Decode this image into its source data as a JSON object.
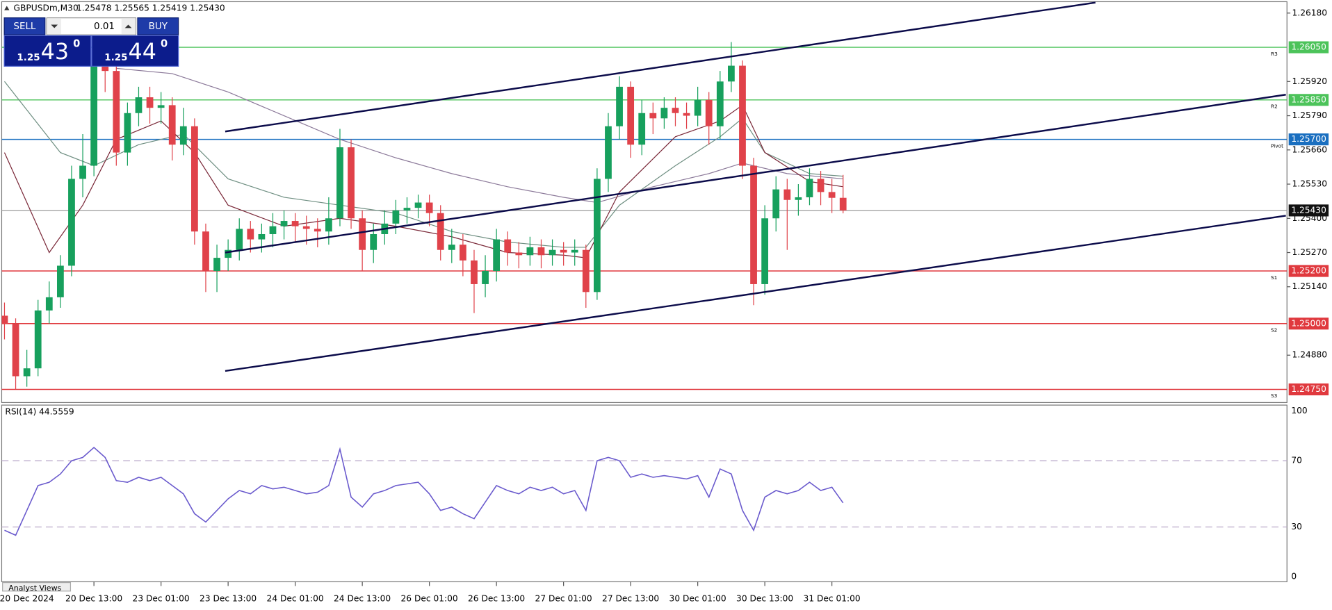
{
  "chart_data": [
    {
      "type": "candlestick",
      "title": "GBPUSDm,M30",
      "ohlc_text": "1.25478 1.25565 1.25419 1.25430",
      "categories": [
        null,
        null,
        "20 Dec 2024",
        null,
        null,
        null,
        null,
        null,
        "20 Dec 13:00",
        null,
        null,
        null,
        null,
        null,
        "23 Dec 01:00",
        null,
        null,
        null,
        null,
        null,
        "23 Dec 13:00",
        null,
        null,
        null,
        null,
        null,
        "24 Dec 01:00",
        null,
        null,
        null,
        null,
        null,
        "24 Dec 13:00",
        null,
        null,
        null,
        null,
        null,
        "26 Dec 01:00",
        null,
        null,
        null,
        null,
        null,
        "26 Dec 13:00",
        null,
        null,
        null,
        null,
        null,
        "27 Dec 01:00",
        null,
        null,
        null,
        null,
        null,
        "27 Dec 13:00",
        null,
        null,
        null,
        null,
        null,
        "30 Dec 01:00",
        null,
        null,
        null,
        null,
        null,
        "30 Dec 13:00",
        null,
        null,
        null,
        null,
        null,
        "31 Dec 01:00",
        null
      ],
      "open": [
        1.2503,
        1.25,
        1.248,
        1.2483,
        1.2505,
        1.251,
        1.2522,
        1.2555,
        1.256,
        1.2598,
        1.2596,
        1.2565,
        1.258,
        1.2586,
        1.2582,
        1.2583,
        1.2568,
        1.2575,
        1.2535,
        1.252,
        1.2525,
        1.2528,
        1.2536,
        1.2532,
        1.2534,
        1.2537,
        1.2539,
        1.2537,
        1.2536,
        1.2535,
        1.254,
        1.2567,
        1.254,
        1.2528,
        1.2534,
        1.2538,
        1.2543,
        1.2544,
        1.2546,
        1.2542,
        1.2528,
        1.253,
        1.2524,
        1.2515,
        1.252,
        1.2532,
        1.2527,
        1.2526,
        1.2529,
        1.2526,
        1.2528,
        1.2527,
        1.2528,
        1.2512,
        1.2555,
        1.2575,
        1.259,
        1.2568,
        1.258,
        1.2578,
        1.2582,
        1.258,
        1.2579,
        1.2585,
        1.2575,
        1.2592,
        1.2598,
        1.256,
        1.2515,
        1.254,
        1.2551,
        1.2547,
        1.2548,
        1.2555,
        1.255,
        1.25478
      ],
      "high": [
        1.2508,
        1.2502,
        1.249,
        1.2509,
        1.2516,
        1.2526,
        1.256,
        1.2572,
        1.2602,
        1.2604,
        1.2598,
        1.2584,
        1.259,
        1.259,
        1.2588,
        1.2586,
        1.2582,
        1.2578,
        1.2538,
        1.253,
        1.2532,
        1.254,
        1.2539,
        1.2538,
        1.2542,
        1.2543,
        1.2542,
        1.2541,
        1.254,
        1.2548,
        1.2574,
        1.257,
        1.2543,
        1.2538,
        1.2543,
        1.2547,
        1.2548,
        1.2549,
        1.2549,
        1.2545,
        1.2536,
        1.2534,
        1.2528,
        1.2526,
        1.2536,
        1.2535,
        1.2531,
        1.2533,
        1.2532,
        1.2532,
        1.2531,
        1.2532,
        1.253,
        1.2559,
        1.258,
        1.2594,
        1.2592,
        1.2585,
        1.2584,
        1.2586,
        1.2586,
        1.2584,
        1.259,
        1.2588,
        1.2596,
        1.2607,
        1.26,
        1.2563,
        1.2545,
        1.2556,
        1.2555,
        1.2553,
        1.2559,
        1.2558,
        1.2555,
        1.25565
      ],
      "low": [
        1.2494,
        1.2475,
        1.2476,
        1.248,
        1.25,
        1.2506,
        1.2518,
        1.2548,
        1.2556,
        1.2588,
        1.256,
        1.256,
        1.2575,
        1.2576,
        1.2576,
        1.2562,
        1.2564,
        1.253,
        1.2512,
        1.2512,
        1.252,
        1.2524,
        1.2527,
        1.2527,
        1.2529,
        1.2532,
        1.2531,
        1.253,
        1.2529,
        1.253,
        1.2537,
        1.2536,
        1.252,
        1.2523,
        1.253,
        1.2534,
        1.2538,
        1.254,
        1.2537,
        1.2524,
        1.2523,
        1.2518,
        1.2504,
        1.251,
        1.2516,
        1.2522,
        1.2521,
        1.2522,
        1.2521,
        1.2522,
        1.2522,
        1.2522,
        1.2506,
        1.2509,
        1.255,
        1.257,
        1.2563,
        1.2564,
        1.2572,
        1.2574,
        1.2575,
        1.2574,
        1.2575,
        1.2568,
        1.257,
        1.2588,
        1.2555,
        1.2507,
        1.2511,
        1.2535,
        1.2528,
        1.2541,
        1.2545,
        1.2545,
        1.2542,
        1.25419
      ],
      "close": [
        1.25,
        1.248,
        1.2483,
        1.2505,
        1.251,
        1.2522,
        1.2555,
        1.256,
        1.2598,
        1.2596,
        1.2565,
        1.258,
        1.2586,
        1.2582,
        1.2583,
        1.2568,
        1.2575,
        1.2535,
        1.252,
        1.2525,
        1.2528,
        1.2536,
        1.2532,
        1.2534,
        1.2537,
        1.2539,
        1.2537,
        1.2536,
        1.2535,
        1.254,
        1.2567,
        1.254,
        1.2528,
        1.2534,
        1.2538,
        1.2543,
        1.2544,
        1.2546,
        1.2542,
        1.2528,
        1.253,
        1.2524,
        1.2515,
        1.252,
        1.2532,
        1.2527,
        1.2526,
        1.2529,
        1.2526,
        1.2528,
        1.2527,
        1.2528,
        1.2512,
        1.2555,
        1.2575,
        1.259,
        1.2568,
        1.258,
        1.2578,
        1.2582,
        1.258,
        1.2579,
        1.2585,
        1.2575,
        1.2592,
        1.2598,
        1.256,
        1.2515,
        1.254,
        1.2551,
        1.2547,
        1.2548,
        1.2555,
        1.255,
        1.25478,
        1.2543
      ],
      "up_color": "#17a05d",
      "down_color": "#e0424a",
      "xlim": [
        -0.25,
        114.7
      ],
      "ylim": [
        1.247,
        1.2622
      ],
      "grid": false,
      "yticks": [
        {
          "value": 1.2618,
          "label": "1.26180"
        },
        {
          "value": 1.2592,
          "label": "1.25920"
        },
        {
          "value": 1.2579,
          "label": "1.25790"
        },
        {
          "value": 1.2566,
          "label": "1.25660"
        },
        {
          "value": 1.2553,
          "label": "1.25530"
        },
        {
          "value": 1.254,
          "label": "1.25400"
        },
        {
          "value": 1.2527,
          "label": "1.25270"
        },
        {
          "value": 1.2514,
          "label": "1.25140"
        },
        {
          "value": 1.2488,
          "label": "1.24880"
        }
      ],
      "levels": [
        {
          "name": "R3",
          "value": 1.2605,
          "label": "1.26050",
          "color": "#4cc35a"
        },
        {
          "name": "R2",
          "value": 1.2585,
          "label": "1.25850",
          "color": "#4cc35a"
        },
        {
          "name": "Pivot",
          "value": 1.257,
          "label": "1.25700",
          "color": "#1a6fc0"
        },
        {
          "name": "S1",
          "value": 1.252,
          "label": "1.25200",
          "color": "#e0393e"
        },
        {
          "name": "S2",
          "value": 1.25,
          "label": "1.25000",
          "color": "#e0393e"
        },
        {
          "name": "S3",
          "value": 1.2475,
          "label": "1.24750",
          "color": "#e0393e"
        }
      ],
      "current_price": {
        "value": 1.2543,
        "label": "1.25430",
        "color": "#999999"
      },
      "moving_averages": [
        {
          "color": "#8c7a9a",
          "x": [
            10,
            15,
            20,
            25,
            30,
            35,
            40,
            45,
            50,
            53,
            58,
            63,
            66,
            70,
            75
          ],
          "values": [
            1.2597,
            1.2595,
            1.2588,
            1.2579,
            1.257,
            1.2563,
            1.2557,
            1.2552,
            1.2548,
            1.2546,
            1.2552,
            1.2557,
            1.2561,
            1.2557,
            1.2555
          ]
        },
        {
          "color": "#6f8f82",
          "x": [
            0,
            5,
            8,
            12,
            16,
            20,
            25,
            30,
            35,
            40,
            45,
            50,
            52,
            55,
            60,
            64,
            66,
            68,
            72,
            75
          ],
          "values": [
            1.2592,
            1.2565,
            1.256,
            1.2568,
            1.2572,
            1.2555,
            1.2548,
            1.2545,
            1.2542,
            1.2535,
            1.2531,
            1.2529,
            1.2529,
            1.2545,
            1.256,
            1.2571,
            1.2578,
            1.2565,
            1.2557,
            1.2556
          ]
        },
        {
          "color": "#7a2838",
          "x": [
            0,
            4,
            7,
            10,
            14,
            17,
            20,
            25,
            30,
            35,
            40,
            45,
            50,
            52,
            55,
            60,
            64,
            66,
            68,
            72,
            75
          ],
          "values": [
            1.2565,
            1.2527,
            1.2545,
            1.257,
            1.2577,
            1.2565,
            1.2545,
            1.2537,
            1.254,
            1.2537,
            1.2533,
            1.2527,
            1.2526,
            1.2525,
            1.255,
            1.2571,
            1.2577,
            1.2583,
            1.2565,
            1.2554,
            1.2552
          ]
        }
      ],
      "trend_lines": [
        {
          "color": "#0b0b4a",
          "x": [
            19.74,
            97.57
          ],
          "y": [
            1.2573,
            1.2622
          ]
        },
        {
          "color": "#0b0b4a",
          "x": [
            19.74,
            114.6
          ],
          "y": [
            1.2527,
            1.2587
          ]
        },
        {
          "color": "#0b0b4a",
          "x": [
            19.74,
            114.6
          ],
          "y": [
            1.2482,
            1.2541
          ]
        }
      ]
    },
    {
      "type": "line",
      "title": "RSI(14) 44.5559",
      "color": "#6a5acd",
      "values": [
        28,
        25,
        40,
        55,
        57,
        62,
        70,
        72,
        78,
        72,
        58,
        57,
        60,
        58,
        60,
        55,
        50,
        38,
        33,
        40,
        47,
        52,
        50,
        55,
        53,
        54,
        52,
        50,
        51,
        55,
        77,
        48,
        42,
        50,
        52,
        55,
        56,
        57,
        50,
        40,
        42,
        38,
        35,
        45,
        55,
        52,
        50,
        54,
        52,
        54,
        50,
        52,
        40,
        70,
        72,
        70,
        60,
        62,
        60,
        61,
        60,
        59,
        61,
        48,
        65,
        62,
        40,
        28,
        48,
        52,
        50,
        52,
        57,
        52,
        54,
        44.5559
      ],
      "ylim": [
        0,
        100
      ],
      "yticks": [
        100,
        70,
        30,
        0
      ]
    }
  ],
  "trade_panel": {
    "sell": "SELL",
    "buy": "BUY",
    "lot": "0.01",
    "bid": {
      "prefix": "1.25",
      "big": "43",
      "sup": "0"
    },
    "ask": {
      "prefix": "1.25",
      "big": "44",
      "sup": "0"
    }
  },
  "tab": "Analyst Views"
}
